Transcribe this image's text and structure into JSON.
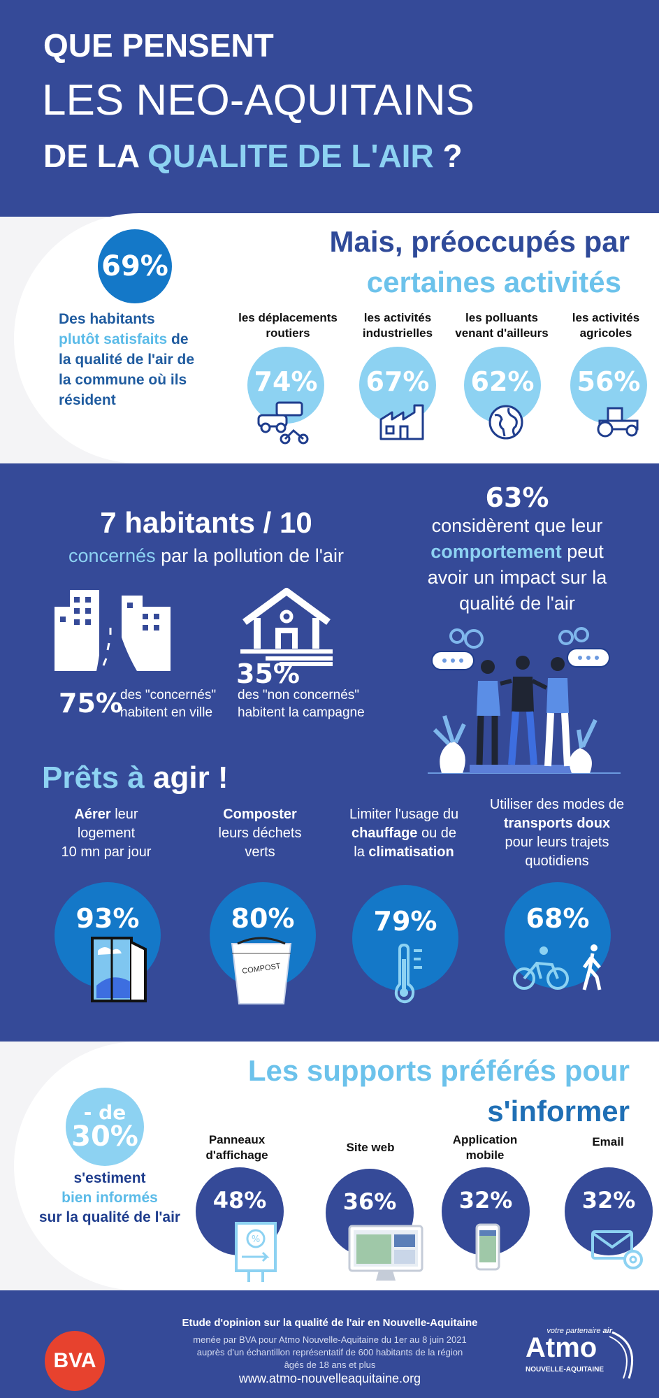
{
  "colors": {
    "navy": "#354a98",
    "sky": "#8dd2f2",
    "blue": "#1478c8",
    "dark_blue": "#1f3d8d",
    "white": "#ffffff",
    "bva_red": "#e7422e"
  },
  "header": {
    "line1": "QUE PENSENT",
    "line2": "LES NEO-AQUITAINS",
    "line3_a": "DE LA",
    "line3_b": "QUALITE DE L'AIR",
    "line3_c": "?"
  },
  "satisfaction": {
    "percent": "69%",
    "text_a": "Des habitants",
    "text_b": "plutôt satisfaits",
    "text_c": "de",
    "text_d": "la qualité de l'air de",
    "text_e": "la commune où ils",
    "text_f": "résident"
  },
  "concerns": {
    "title_a": "Mais, préoccupés par",
    "title_b": "certaines activités",
    "items": [
      {
        "label_a": "les déplacements",
        "label_b": "routiers",
        "percent": "74%",
        "icon": "vehicles-icon"
      },
      {
        "label_a": "les activités",
        "label_b": "industrielles",
        "percent": "67%",
        "icon": "factory-icon"
      },
      {
        "label_a": "les polluants",
        "label_b": "venant d'ailleurs",
        "percent": "62%",
        "icon": "globe-icon"
      },
      {
        "label_a": "les activités",
        "label_b": "agricoles",
        "percent": "56%",
        "icon": "tractor-icon"
      }
    ]
  },
  "concerned": {
    "title": "7 habitants / 10",
    "sub_a": "concernés",
    "sub_b": "par la pollution de l'air",
    "city_percent": "75%",
    "city_text_a": "des \"concernés\"",
    "city_text_b": "habitent en ville",
    "country_percent": "35%",
    "country_text_a": "des \"non concernés\"",
    "country_text_b": "habitent la campagne"
  },
  "behaviour": {
    "percent": "63%",
    "line1": "considèrent que leur",
    "line2_a": "comportement",
    "line2_b": "peut",
    "line3": "avoir un impact sur la",
    "line4": "qualité de l'air"
  },
  "ready": {
    "title_a": "Prêts à",
    "title_b": "agir !",
    "items": [
      {
        "l1a": "Aérer",
        "l1b": " leur",
        "l2": "logement",
        "l3": "10 mn par jour",
        "percent": "93%",
        "icon": "window-icon"
      },
      {
        "l1a": "Composter",
        "l1b": "",
        "l2": "leurs déchets",
        "l3": "verts",
        "percent": "80%",
        "icon": "compost-bin-icon"
      },
      {
        "l1a": "Limiter l'usage du",
        "l2a": "chauffage",
        "l2b": " ou de",
        "l3a": "la ",
        "l3b": "climatisation",
        "percent": "79%",
        "icon": "thermometer-icon"
      },
      {
        "l1": "Utiliser des modes de",
        "l2": "transports doux",
        "l3": "pour leurs trajets",
        "l4": "quotidiens",
        "percent": "68%",
        "icon": "bike-walk-icon"
      }
    ],
    "compost_label": "COMPOST"
  },
  "supports": {
    "title_a": "Les supports préférés pour",
    "title_b": "s'informer",
    "under_a": "- de",
    "under_b": "30%",
    "text_a": "s'estiment",
    "text_b": "bien informés",
    "text_c": "sur la qualité de l'air",
    "items": [
      {
        "label_a": "Panneaux",
        "label_b": "d'affichage",
        "percent": "48%",
        "icon": "billboard-icon"
      },
      {
        "label_a": "Site web",
        "label_b": "",
        "percent": "36%",
        "icon": "monitor-icon"
      },
      {
        "label_a": "Application",
        "label_b": "mobile",
        "percent": "32%",
        "icon": "phone-icon"
      },
      {
        "label_a": "Email",
        "label_b": "",
        "percent": "32%",
        "icon": "email-icon"
      }
    ]
  },
  "footer": {
    "title": "Etude d'opinion sur la qualité de l'air en Nouvelle-Aquitaine",
    "line1": "menée par BVA pour Atmo Nouvelle-Aquitaine du 1er au 8 juin 2021",
    "line2": "auprès d'un échantillon représentatif de 600 habitants de la région",
    "line3": "âgés de 18 ans et plus",
    "url": "www.atmo-nouvelleaquitaine.org",
    "bva": "BVA",
    "atmo": "Atmo",
    "atmo_tag_a": "votre partenaire",
    "atmo_tag_b": "air",
    "atmo_region": "NOUVELLE-AQUITAINE"
  }
}
